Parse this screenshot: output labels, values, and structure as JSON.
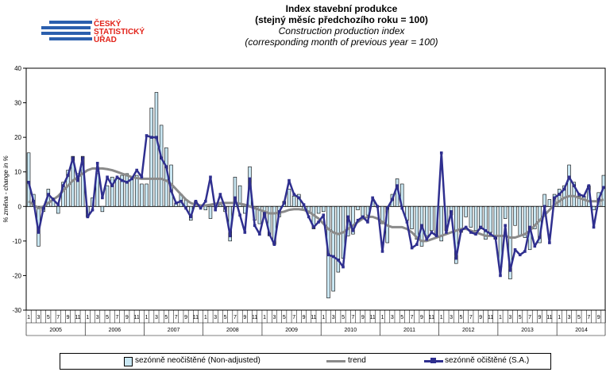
{
  "header": {
    "title_cz": "Index stavební produkce",
    "subtitle_cz": "(stejný měsíc předchozího roku = 100)",
    "title_en": "Construction production index",
    "subtitle_en": "(corresponding month of previous year = 100)"
  },
  "logo": {
    "line1": "ČESKÝ",
    "line2": "STATISTICKÝ",
    "line3": "ÚŘAD",
    "bar_color": "#2b5fae",
    "text_color": "#e2231a"
  },
  "chart_data": {
    "type": "bar+line",
    "ylabel": "% změna - change in %",
    "ylim": [
      -30,
      40
    ],
    "yticks": [
      -30,
      -20,
      -10,
      0,
      10,
      20,
      30,
      40
    ],
    "grid": false,
    "legend_position": "bottom",
    "month_tick_labels": [
      "1",
      "3",
      "5",
      "7",
      "9",
      "11"
    ],
    "years": [
      "2005",
      "2006",
      "2007",
      "2008",
      "2009",
      "2010",
      "2011",
      "2012",
      "2013",
      "2014"
    ],
    "months_in_last_year": 9,
    "colors": {
      "bar_fill": "#c9e7f3",
      "bar_stroke": "#000000",
      "trend": "#8a8a8a",
      "sa": "#2f2f8f"
    },
    "series": [
      {
        "name": "sezónně neočištěné (Non-adjusted)",
        "type": "bar",
        "values": [
          15.5,
          3.5,
          -11.5,
          -1.5,
          5.0,
          2.5,
          -2.0,
          7.0,
          10.5,
          14.5,
          9.5,
          14.5,
          -3.0,
          2.5,
          9.5,
          -1.5,
          6.0,
          8.5,
          8.0,
          9.0,
          9.5,
          8.0,
          9.0,
          6.5,
          6.5,
          28.5,
          33.0,
          23.5,
          17.0,
          12.0,
          1.0,
          3.5,
          2.0,
          -4.0,
          1.5,
          0.5,
          -1.0,
          -3.5,
          0.0,
          0.5,
          -1.5,
          -10.0,
          8.5,
          6.0,
          -2.0,
          11.5,
          -4.0,
          -5.0,
          -3.0,
          -8.5,
          -11.0,
          -3.0,
          1.5,
          5.0,
          3.0,
          3.5,
          -1.0,
          -2.0,
          -6.5,
          -2.0,
          -1.5,
          -26.5,
          -24.5,
          -19.0,
          -15.0,
          -8.5,
          -8.0,
          -1.0,
          -3.0,
          -2.5,
          1.5,
          0.0,
          -5.0,
          -10.5,
          3.5,
          8.0,
          6.5,
          -4.0,
          -6.5,
          -9.5,
          -11.5,
          -8.5,
          -7.0,
          -8.5,
          -10.0,
          -7.0,
          -2.5,
          -16.5,
          -7.5,
          -3.0,
          -6.0,
          -7.0,
          -6.5,
          -9.5,
          -7.5,
          -9.5,
          -17.5,
          -3.5,
          -21.0,
          -5.5,
          -8.5,
          -9.0,
          -12.5,
          -6.5,
          -10.5,
          3.5,
          2.0,
          3.5,
          5.0,
          6.0,
          12.0,
          7.0,
          3.0,
          3.0,
          6.0,
          -1.0,
          4.0,
          9.0
        ]
      },
      {
        "name": "trend",
        "type": "line",
        "values": [
          1.5,
          0.5,
          -0.5,
          0.0,
          1.0,
          2.0,
          3.0,
          4.5,
          6.0,
          7.5,
          8.5,
          9.5,
          10.5,
          11.0,
          11.0,
          11.0,
          10.8,
          10.5,
          10.0,
          9.5,
          9.0,
          8.5,
          8.2,
          8.0,
          8.0,
          8.0,
          8.0,
          8.0,
          7.5,
          6.5,
          5.0,
          3.5,
          2.0,
          1.0,
          0.5,
          0.3,
          0.3,
          0.5,
          0.8,
          1.0,
          1.0,
          1.0,
          1.0,
          0.8,
          0.5,
          0.0,
          -0.5,
          -1.0,
          -1.5,
          -2.0,
          -2.0,
          -1.8,
          -1.5,
          -1.0,
          -0.8,
          -0.8,
          -1.0,
          -1.5,
          -2.5,
          -3.5,
          -5.0,
          -6.5,
          -7.5,
          -8.0,
          -7.5,
          -6.5,
          -5.5,
          -4.5,
          -3.5,
          -3.0,
          -3.0,
          -3.5,
          -4.5,
          -5.5,
          -6.0,
          -6.0,
          -6.0,
          -6.5,
          -7.5,
          -9.0,
          -10.0,
          -10.0,
          -9.5,
          -9.0,
          -8.5,
          -8.0,
          -7.5,
          -7.0,
          -6.5,
          -6.5,
          -7.0,
          -7.5,
          -8.0,
          -8.5,
          -8.5,
          -8.5,
          -8.5,
          -8.5,
          -9.0,
          -9.0,
          -8.5,
          -8.0,
          -7.0,
          -5.5,
          -4.0,
          -2.5,
          -1.0,
          0.5,
          1.5,
          2.5,
          3.0,
          3.0,
          2.5,
          2.0,
          1.5,
          1.5,
          1.5,
          2.0
        ]
      },
      {
        "name": "sezónně očištěné (S.A.)",
        "type": "line",
        "values": [
          7.0,
          1.5,
          -7.5,
          -0.5,
          3.5,
          2.0,
          0.5,
          6.0,
          9.0,
          14.0,
          7.5,
          14.0,
          -3.0,
          -1.0,
          12.5,
          2.5,
          8.5,
          6.0,
          8.5,
          7.5,
          7.0,
          8.0,
          10.5,
          8.5,
          20.5,
          20.0,
          20.0,
          14.0,
          11.5,
          4.5,
          1.0,
          1.5,
          -0.5,
          -3.0,
          1.5,
          -0.5,
          1.5,
          8.5,
          -1.0,
          3.5,
          -0.5,
          -8.5,
          2.5,
          -2.5,
          -7.5,
          8.0,
          -5.5,
          -8.0,
          -2.0,
          -8.0,
          -11.0,
          -1.5,
          1.0,
          7.5,
          3.5,
          2.5,
          0.5,
          -3.0,
          -6.0,
          -4.5,
          -2.5,
          -14.0,
          -14.5,
          -15.5,
          -17.5,
          -3.0,
          -7.0,
          -4.0,
          -3.0,
          -4.5,
          2.5,
          0.0,
          -13.0,
          -0.5,
          2.0,
          6.0,
          -0.5,
          -4.5,
          -12.0,
          -11.0,
          -5.5,
          -9.5,
          -7.5,
          -8.5,
          15.5,
          -7.5,
          -1.5,
          -15.0,
          -7.0,
          -6.0,
          -7.5,
          -8.0,
          -6.0,
          -7.0,
          -8.0,
          -9.0,
          -20.0,
          -5.5,
          -18.5,
          -12.5,
          -14.0,
          -13.0,
          -6.0,
          -11.5,
          -9.0,
          0.0,
          -10.5,
          2.5,
          3.5,
          5.0,
          8.5,
          6.0,
          3.5,
          3.0,
          6.0,
          -6.0,
          2.0,
          5.5
        ]
      }
    ]
  },
  "legend": {
    "items": [
      "sezónně neočištěné (Non-adjusted)",
      "trend",
      "sezónně očištěné (S.A.)"
    ]
  }
}
